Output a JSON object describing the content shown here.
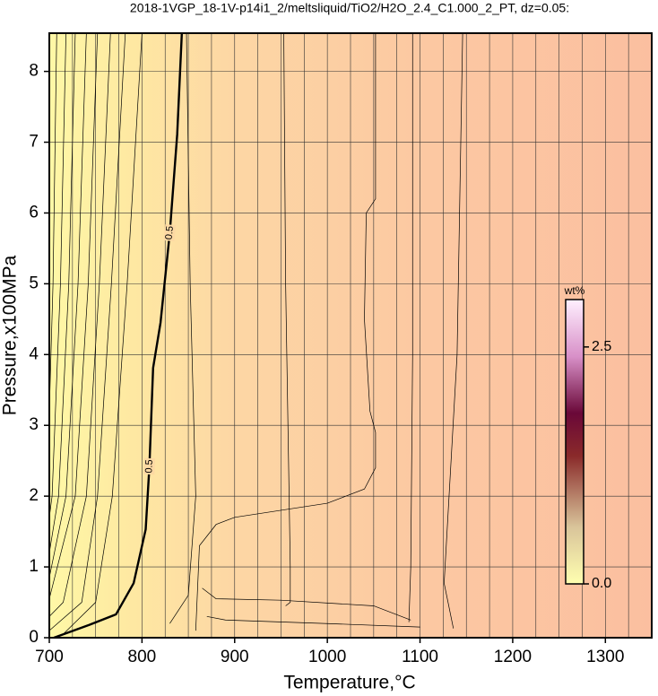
{
  "chart_data": {
    "type": "contour",
    "title": "2018-1VGP_18-1V-p14i1_2/meltsliquid/TiO2/H2O_2.4_C1.000_2_PT, dz=0.05:",
    "x_label": "Temperature,°C",
    "y_label": "Pressure,x100MPa",
    "xlim": [
      700,
      1350
    ],
    "ylim": [
      0,
      8.54
    ],
    "xticks": [
      700,
      800,
      900,
      1000,
      1100,
      1200,
      1300
    ],
    "yticks": [
      0,
      1,
      2,
      3,
      4,
      5,
      6,
      7,
      8
    ],
    "x_gridlines": [
      725,
      750,
      775,
      825,
      850,
      875,
      925,
      950,
      975,
      1025,
      1050,
      1075,
      1125,
      1150,
      1175,
      1225,
      1250,
      1275,
      1325
    ],
    "grid": true,
    "contours": [
      {
        "label": "0.5",
        "bold": true,
        "x": [
          705,
          743,
          772,
          791,
          804,
          808,
          812,
          820,
          830,
          838,
          843
        ],
        "y": [
          0,
          0.18,
          0.33,
          0.77,
          1.53,
          2.42,
          3.81,
          4.45,
          5.72,
          7.11,
          8.54
        ]
      },
      {
        "x": [
          708,
          704,
          700
        ],
        "y": [
          8.54,
          5,
          3.2
        ]
      },
      {
        "x": [
          718,
          712,
          703,
          700
        ],
        "y": [
          8.54,
          5,
          2,
          1.7
        ]
      },
      {
        "x": [
          728,
          721,
          710,
          700
        ],
        "y": [
          8.54,
          5,
          2,
          1.2
        ]
      },
      {
        "x": [
          740,
          731,
          718,
          700
        ],
        "y": [
          8.54,
          5,
          2,
          0.85
        ]
      },
      {
        "x": [
          752,
          742,
          728,
          700
        ],
        "y": [
          8.54,
          5,
          2,
          0.55
        ]
      },
      {
        "x": [
          766,
          754,
          740,
          715,
          700
        ],
        "y": [
          8.54,
          5,
          2,
          0.5,
          0.3
        ]
      },
      {
        "x": [
          782,
          767,
          752,
          735,
          700
        ],
        "y": [
          8.54,
          5,
          2,
          0.5,
          0.1
        ]
      },
      {
        "x": [
          800,
          784,
          768,
          750,
          715
        ],
        "y": [
          8.54,
          5,
          2,
          0.5,
          0.05
        ]
      },
      {
        "x": [
          848,
          852,
          858,
          850,
          830
        ],
        "y": [
          8.54,
          5,
          2,
          0.6,
          0.2
        ]
      },
      {
        "x": [
          858,
          860,
          862,
          880,
          900,
          950,
          1000,
          1040,
          1052,
          1052,
          1046,
          1040,
          1042,
          1052,
          1052
        ],
        "y": [
          0.1,
          0.7,
          1.3,
          1.6,
          1.7,
          1.8,
          1.9,
          2.1,
          2.4,
          2.9,
          3.2,
          4.5,
          6,
          6.2,
          8.54
        ]
      },
      {
        "x": [
          953,
          955,
          960,
          960,
          955
        ],
        "y": [
          8.54,
          5,
          1,
          0.5,
          0.45
        ]
      },
      {
        "x": [
          1092,
          1092,
          1090,
          1088
        ],
        "y": [
          8.54,
          4,
          1,
          0.22
        ]
      },
      {
        "x": [
          1146,
          1140,
          1126,
          1136
        ],
        "y": [
          8.54,
          4,
          0.77,
          0.13
        ]
      },
      {
        "x": [
          865,
          880,
          950,
          1050,
          1090
        ],
        "y": [
          0.7,
          0.55,
          0.53,
          0.45,
          0.25
        ]
      },
      {
        "x": [
          870,
          890,
          1000,
          1100
        ],
        "y": [
          0.3,
          0.25,
          0.2,
          0.15
        ]
      }
    ],
    "colorbar": {
      "label": "wt%",
      "lim": [
        0,
        3.0
      ],
      "ticks": [
        {
          "value": 0,
          "label": "0.0"
        },
        2.5
      ]
    }
  }
}
